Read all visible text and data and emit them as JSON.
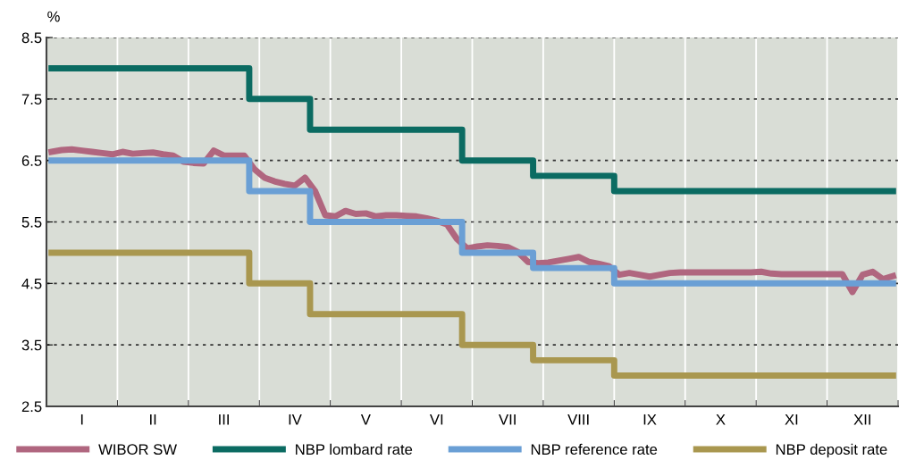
{
  "chart_data": {
    "type": "line",
    "ylabel": "%",
    "ylim": [
      2.5,
      8.5
    ],
    "yticks": [
      2.5,
      3.5,
      4.5,
      5.5,
      6.5,
      7.5,
      8.5
    ],
    "categories": [
      null,
      null,
      null,
      "I",
      null,
      null,
      null,
      null,
      null,
      null,
      "II",
      null,
      null,
      null,
      null,
      null,
      null,
      "III",
      null,
      null,
      null,
      null,
      null,
      null,
      "IV",
      null,
      null,
      null,
      null,
      null,
      null,
      "V",
      null,
      null,
      null,
      null,
      null,
      null,
      "VI",
      null,
      null,
      null,
      null,
      null,
      null,
      "VII",
      null,
      null,
      null,
      null,
      null,
      null,
      "VIII",
      null,
      null,
      null,
      null,
      null,
      null,
      "IX",
      null,
      null,
      null,
      null,
      null,
      null,
      "X",
      null,
      null,
      null,
      null,
      null,
      null,
      "XI",
      null,
      null,
      null,
      null,
      null,
      null,
      "XII",
      null,
      null,
      null
    ],
    "grid": true,
    "legend": "bottom",
    "marker": "none",
    "line_style": "solid",
    "series": [
      {
        "name": "WIBOR SW",
        "color": "#b0667f",
        "values": [
          6.64,
          6.67,
          6.68,
          6.66,
          6.64,
          6.62,
          6.6,
          6.64,
          6.61,
          6.62,
          6.63,
          6.6,
          6.58,
          6.48,
          6.46,
          6.45,
          6.66,
          6.58,
          6.58,
          6.58,
          6.36,
          6.22,
          6.16,
          6.12,
          6.09,
          6.22,
          6.0,
          5.61,
          5.59,
          5.68,
          5.63,
          5.64,
          5.59,
          5.61,
          5.61,
          5.6,
          5.59,
          5.56,
          5.52,
          5.46,
          5.22,
          5.07,
          5.1,
          5.12,
          5.11,
          5.09,
          5.01,
          4.85,
          4.83,
          4.84,
          4.87,
          4.9,
          4.93,
          4.85,
          4.82,
          4.78,
          4.64,
          4.67,
          4.64,
          4.61,
          4.64,
          4.67,
          4.68,
          4.68,
          4.68,
          4.68,
          4.68,
          4.68,
          4.68,
          4.68,
          4.69,
          4.66,
          4.65,
          4.65,
          4.65,
          4.65,
          4.65,
          4.65,
          4.65,
          4.36,
          4.64,
          4.69,
          4.57,
          4.62
        ]
      },
      {
        "name": "NBP lombard rate",
        "color": "#0b6b62",
        "type": "step",
        "values": [
          8.0,
          8.0,
          8.0,
          8.0,
          8.0,
          8.0,
          8.0,
          8.0,
          8.0,
          8.0,
          8.0,
          8.0,
          8.0,
          8.0,
          8.0,
          8.0,
          8.0,
          8.0,
          8.0,
          8.0,
          7.5,
          7.5,
          7.5,
          7.5,
          7.5,
          7.5,
          7.0,
          7.0,
          7.0,
          7.0,
          7.0,
          7.0,
          7.0,
          7.0,
          7.0,
          7.0,
          7.0,
          7.0,
          7.0,
          7.0,
          7.0,
          6.5,
          6.5,
          6.5,
          6.5,
          6.5,
          6.5,
          6.5,
          6.25,
          6.25,
          6.25,
          6.25,
          6.25,
          6.25,
          6.25,
          6.25,
          6.0,
          6.0,
          6.0,
          6.0,
          6.0,
          6.0,
          6.0,
          6.0,
          6.0,
          6.0,
          6.0,
          6.0,
          6.0,
          6.0,
          6.0,
          6.0,
          6.0,
          6.0,
          6.0,
          6.0,
          6.0,
          6.0,
          6.0,
          6.0,
          6.0,
          6.0,
          6.0,
          6.0
        ]
      },
      {
        "name": "NBP reference rate",
        "color": "#6a9fd5",
        "type": "step",
        "values": [
          6.5,
          6.5,
          6.5,
          6.5,
          6.5,
          6.5,
          6.5,
          6.5,
          6.5,
          6.5,
          6.5,
          6.5,
          6.5,
          6.5,
          6.5,
          6.5,
          6.5,
          6.5,
          6.5,
          6.5,
          6.0,
          6.0,
          6.0,
          6.0,
          6.0,
          6.0,
          5.5,
          5.5,
          5.5,
          5.5,
          5.5,
          5.5,
          5.5,
          5.5,
          5.5,
          5.5,
          5.5,
          5.5,
          5.5,
          5.5,
          5.5,
          5.0,
          5.0,
          5.0,
          5.0,
          5.0,
          5.0,
          5.0,
          4.75,
          4.75,
          4.75,
          4.75,
          4.75,
          4.75,
          4.75,
          4.75,
          4.5,
          4.5,
          4.5,
          4.5,
          4.5,
          4.5,
          4.5,
          4.5,
          4.5,
          4.5,
          4.5,
          4.5,
          4.5,
          4.5,
          4.5,
          4.5,
          4.5,
          4.5,
          4.5,
          4.5,
          4.5,
          4.5,
          4.5,
          4.5,
          4.5,
          4.5,
          4.5,
          4.5
        ]
      },
      {
        "name": "NBP deposit rate",
        "color": "#a9974f",
        "type": "step",
        "values": [
          5.0,
          5.0,
          5.0,
          5.0,
          5.0,
          5.0,
          5.0,
          5.0,
          5.0,
          5.0,
          5.0,
          5.0,
          5.0,
          5.0,
          5.0,
          5.0,
          5.0,
          5.0,
          5.0,
          5.0,
          4.5,
          4.5,
          4.5,
          4.5,
          4.5,
          4.5,
          4.0,
          4.0,
          4.0,
          4.0,
          4.0,
          4.0,
          4.0,
          4.0,
          4.0,
          4.0,
          4.0,
          4.0,
          4.0,
          4.0,
          4.0,
          3.5,
          3.5,
          3.5,
          3.5,
          3.5,
          3.5,
          3.5,
          3.25,
          3.25,
          3.25,
          3.25,
          3.25,
          3.25,
          3.25,
          3.25,
          3.0,
          3.0,
          3.0,
          3.0,
          3.0,
          3.0,
          3.0,
          3.0,
          3.0,
          3.0,
          3.0,
          3.0,
          3.0,
          3.0,
          3.0,
          3.0,
          3.0,
          3.0,
          3.0,
          3.0,
          3.0,
          3.0,
          3.0,
          3.0,
          3.0,
          3.0,
          3.0,
          3.0
        ]
      }
    ]
  }
}
